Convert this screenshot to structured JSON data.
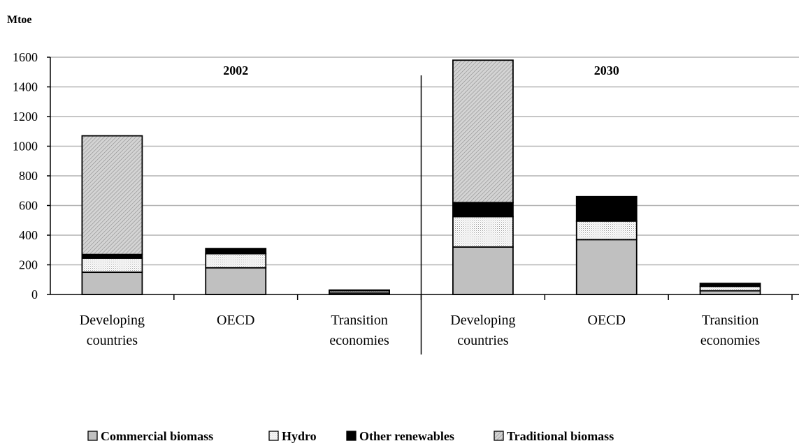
{
  "chart_data": {
    "type": "bar",
    "stacked": true,
    "ylabel": "Mtoe",
    "ylim": [
      0,
      1600
    ],
    "yticks": [
      0,
      200,
      400,
      600,
      800,
      1000,
      1200,
      1400,
      1600
    ],
    "grid": true,
    "legend_position": "bottom",
    "panels": [
      {
        "label": "2002",
        "categories": [
          "Developing countries",
          "OECD",
          "Transition economies"
        ],
        "series": [
          {
            "name": "Commercial biomass",
            "values": [
              150,
              180,
              10
            ]
          },
          {
            "name": "Hydro",
            "values": [
              95,
              95,
              15
            ]
          },
          {
            "name": "Other renewables",
            "values": [
              25,
              35,
              5
            ]
          },
          {
            "name": "Traditional biomass",
            "values": [
              800,
              0,
              0
            ]
          }
        ]
      },
      {
        "label": "2030",
        "categories": [
          "Developing countries",
          "OECD",
          "Transition economies"
        ],
        "series": [
          {
            "name": "Commercial biomass",
            "values": [
              320,
              370,
              25
            ]
          },
          {
            "name": "Hydro",
            "values": [
              205,
              125,
              30
            ]
          },
          {
            "name": "Other renewables",
            "values": [
              95,
              165,
              20
            ]
          },
          {
            "name": "Traditional biomass",
            "values": [
              960,
              0,
              0
            ]
          }
        ]
      }
    ],
    "category_lines": [
      [
        "Developing",
        "countries"
      ],
      [
        "OECD"
      ],
      [
        "Transition",
        "economies"
      ]
    ],
    "legend": [
      "Commercial biomass",
      "Hydro",
      "Other renewables",
      "Traditional biomass"
    ],
    "colors": {
      "Commercial biomass": "#c0c0c0",
      "Hydro": "#ffffff",
      "Other renewables": "#000000",
      "Traditional biomass": "#c8c8c8",
      "grid": "#b3b3b3",
      "axis": "#000000"
    }
  }
}
